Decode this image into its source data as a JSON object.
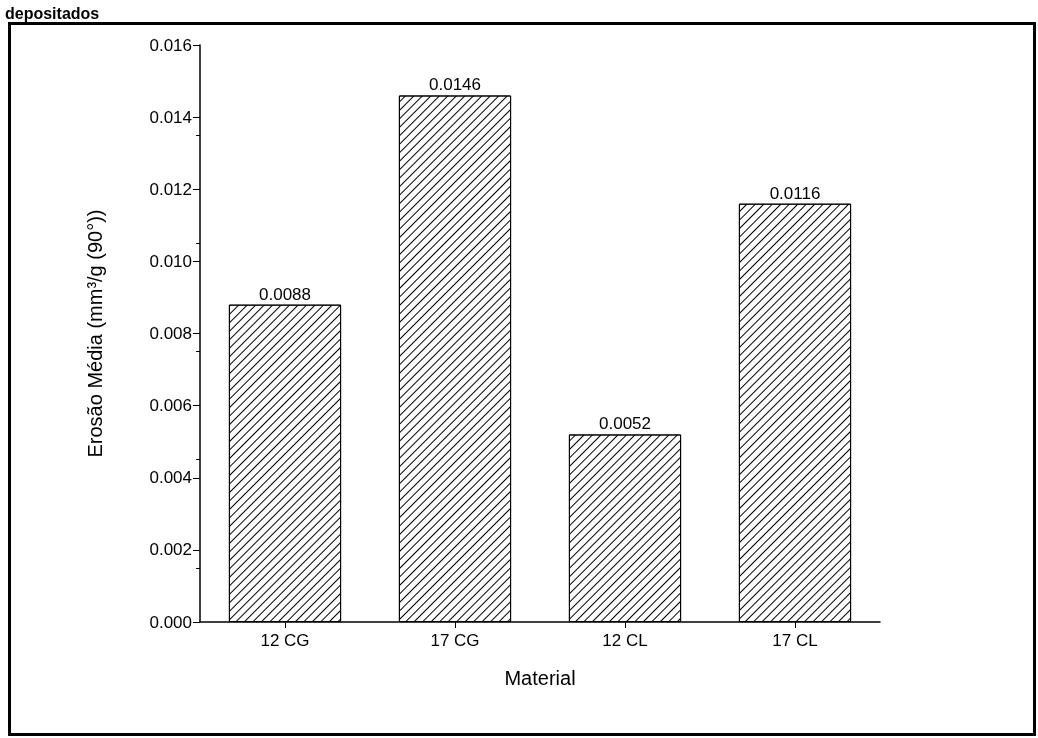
{
  "chart_data": {
    "type": "bar",
    "title": "depositados",
    "xlabel": "Material",
    "ylabel": "Erosão Média (mm³/g (90°))",
    "categories": [
      "12 CG",
      "17 CG",
      "12 CL",
      "17 CL"
    ],
    "values": [
      0.0088,
      0.0146,
      0.0052,
      0.0116
    ],
    "color": "#ffffff",
    "ylim": [
      0,
      0.016
    ],
    "yticks": [
      {
        "value": 0,
        "label": "0.000"
      },
      0.002,
      0.004,
      0.006,
      0.008,
      {
        "value": 0.01,
        "label": "0.010"
      },
      0.012,
      0.014,
      {
        "value": 0.016,
        "label": "0.016"
      }
    ],
    "data_labels": true,
    "grid": false
  }
}
